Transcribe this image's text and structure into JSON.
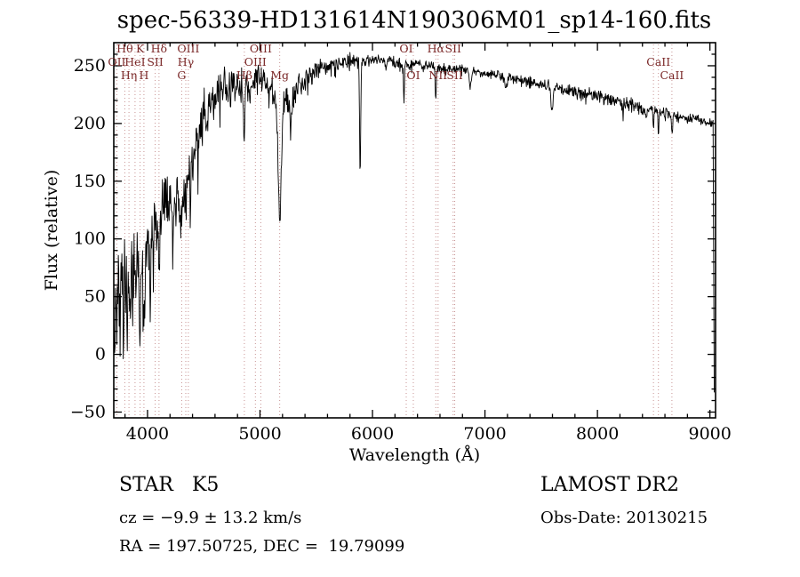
{
  "title": "spec-56339-HD131614N190306M01_sp14-160.fits",
  "axes": {
    "xlabel": "Wavelength (Å)",
    "ylabel": "Flux (relative)"
  },
  "footer": {
    "class_label": "STAR   K5",
    "survey": "LAMOST DR2",
    "cz": "cz = −9.9 ± 13.2 km/s",
    "obs_date": "Obs-Date: 20130215",
    "radec": "RA = 197.50725, DEC =  19.79099"
  },
  "chart_data": {
    "type": "line",
    "title": "spec-56339-HD131614N190306M01_sp14-160.fits",
    "xlabel": "Wavelength (Å)",
    "ylabel": "Flux (relative)",
    "xlim": [
      3700,
      9050
    ],
    "ylim": [
      -55,
      270
    ],
    "xticks": [
      4000,
      5000,
      6000,
      7000,
      8000,
      9000
    ],
    "yticks": [
      -50,
      0,
      50,
      100,
      150,
      200,
      250
    ],
    "x_minor": 200,
    "y_minor": 10,
    "grid": false,
    "color": "#000000",
    "marker_color": "#c89494",
    "label_color": "#7a2727",
    "sample_step": 4,
    "sample_end": 9030,
    "edge_drop": [
      9038,
      -33
    ],
    "spectral_lines": [
      {
        "label": "OII",
        "wl": 3727,
        "row": 1
      },
      {
        "label": "Hθ",
        "wl": 3798,
        "row": 0
      },
      {
        "label": "Hη",
        "wl": 3835,
        "row": 2
      },
      {
        "label": "HeI",
        "wl": 3889,
        "row": 1
      },
      {
        "label": "K",
        "wl": 3934,
        "row": 0
      },
      {
        "label": "H",
        "wl": 3968,
        "row": 2
      },
      {
        "label": "SII",
        "wl": 4068,
        "row": 1
      },
      {
        "label": "Hδ",
        "wl": 4102,
        "row": 0
      },
      {
        "label": "G",
        "wl": 4304,
        "row": 2
      },
      {
        "label": "Hγ",
        "wl": 4340,
        "row": 1
      },
      {
        "label": "OIII",
        "wl": 4363,
        "row": 0
      },
      {
        "label": "Hβ",
        "wl": 4861,
        "row": 2
      },
      {
        "label": "OIII",
        "wl": 4959,
        "row": 1
      },
      {
        "label": "OIII",
        "wl": 5007,
        "row": 0
      },
      {
        "label": "Mg",
        "wl": 5175,
        "row": 2
      },
      {
        "label": "OI",
        "wl": 6300,
        "row": 0
      },
      {
        "label": "OI",
        "wl": 6363,
        "row": 2
      },
      {
        "label": "Hα",
        "wl": 6563,
        "row": 0
      },
      {
        "label": "NII",
        "wl": 6583,
        "row": 2
      },
      {
        "label": "SII",
        "wl": 6717,
        "row": 0
      },
      {
        "label": "SII",
        "wl": 6731,
        "row": 2
      },
      {
        "label": "",
        "wl": 8498,
        "row": 1
      },
      {
        "label": "CaII",
        "wl": 8542,
        "row": 1
      },
      {
        "label": "CaII",
        "wl": 8662,
        "row": 2
      }
    ],
    "continuum": [
      [
        3700,
        5
      ],
      [
        3730,
        30
      ],
      [
        3760,
        48
      ],
      [
        3800,
        55
      ],
      [
        3850,
        62
      ],
      [
        3900,
        72
      ],
      [
        3950,
        78
      ],
      [
        4000,
        88
      ],
      [
        4060,
        104
      ],
      [
        4120,
        120
      ],
      [
        4170,
        130
      ],
      [
        4220,
        133
      ],
      [
        4270,
        134
      ],
      [
        4320,
        140
      ],
      [
        4370,
        157
      ],
      [
        4420,
        180
      ],
      [
        4470,
        198
      ],
      [
        4520,
        210
      ],
      [
        4570,
        220
      ],
      [
        4620,
        230
      ],
      [
        4670,
        238
      ],
      [
        4720,
        232
      ],
      [
        4770,
        230
      ],
      [
        4820,
        234
      ],
      [
        4870,
        231
      ],
      [
        4920,
        228
      ],
      [
        4970,
        238
      ],
      [
        5020,
        240
      ],
      [
        5070,
        233
      ],
      [
        5120,
        227
      ],
      [
        5170,
        224
      ],
      [
        5220,
        220
      ],
      [
        5270,
        215
      ],
      [
        5320,
        230
      ],
      [
        5370,
        236
      ],
      [
        5420,
        241
      ],
      [
        5500,
        246
      ],
      [
        5600,
        250
      ],
      [
        5700,
        252
      ],
      [
        5800,
        255
      ],
      [
        5900,
        255
      ],
      [
        6000,
        254
      ],
      [
        6100,
        255
      ],
      [
        6200,
        253
      ],
      [
        6300,
        251
      ],
      [
        6400,
        252
      ],
      [
        6500,
        250
      ],
      [
        6600,
        248
      ],
      [
        6700,
        247
      ],
      [
        6800,
        247
      ],
      [
        6900,
        245
      ],
      [
        7000,
        244
      ],
      [
        7100,
        243
      ],
      [
        7200,
        240
      ],
      [
        7300,
        238
      ],
      [
        7400,
        236
      ],
      [
        7500,
        234
      ],
      [
        7600,
        232
      ],
      [
        7700,
        230
      ],
      [
        7800,
        228
      ],
      [
        7900,
        226
      ],
      [
        8000,
        224
      ],
      [
        8100,
        221
      ],
      [
        8200,
        219
      ],
      [
        8300,
        216
      ],
      [
        8400,
        213
      ],
      [
        8500,
        211
      ],
      [
        8600,
        209
      ],
      [
        8700,
        207
      ],
      [
        8800,
        205
      ],
      [
        8900,
        203
      ],
      [
        9000,
        201
      ],
      [
        9030,
        199
      ]
    ],
    "absorption_features": [
      [
        3934,
        55,
        6
      ],
      [
        3968,
        50,
        6
      ],
      [
        4026,
        18,
        5
      ],
      [
        4102,
        32,
        6
      ],
      [
        4227,
        28,
        5
      ],
      [
        4300,
        32,
        9
      ],
      [
        4340,
        26,
        6
      ],
      [
        4383,
        24,
        5
      ],
      [
        4455,
        18,
        5
      ],
      [
        4531,
        15,
        5
      ],
      [
        4668,
        16,
        5
      ],
      [
        4861,
        55,
        5
      ],
      [
        5175,
        105,
        14
      ],
      [
        5270,
        20,
        7
      ],
      [
        5890,
        102,
        5
      ],
      [
        6122,
        10,
        5
      ],
      [
        6280,
        32,
        4
      ],
      [
        6563,
        26,
        5
      ],
      [
        6867,
        16,
        7
      ],
      [
        7180,
        10,
        8
      ],
      [
        7594,
        22,
        9
      ],
      [
        8227,
        12,
        5
      ],
      [
        8434,
        10,
        5
      ],
      [
        8498,
        16,
        4
      ],
      [
        8542,
        21,
        4
      ],
      [
        8662,
        18,
        4
      ]
    ],
    "noise": {
      "seed": 20130215,
      "spike_prob": 0.05,
      "spike_scale": 1.1,
      "anchors": [
        [
          3700,
          48
        ],
        [
          3780,
          42
        ],
        [
          3860,
          38
        ],
        [
          3950,
          32
        ],
        [
          4050,
          26
        ],
        [
          4150,
          20
        ],
        [
          4250,
          18
        ],
        [
          4350,
          22
        ],
        [
          4450,
          20
        ],
        [
          4550,
          17
        ],
        [
          4650,
          14
        ],
        [
          4750,
          12
        ],
        [
          4850,
          11
        ],
        [
          4950,
          10
        ],
        [
          5050,
          9
        ],
        [
          5150,
          9
        ],
        [
          5250,
          10
        ],
        [
          5350,
          8
        ],
        [
          5450,
          7
        ],
        [
          5550,
          6
        ],
        [
          5700,
          5
        ],
        [
          5850,
          4.5
        ],
        [
          6000,
          4
        ],
        [
          6250,
          4
        ],
        [
          6500,
          3.5
        ],
        [
          6750,
          3
        ],
        [
          7000,
          3
        ],
        [
          7250,
          3.5
        ],
        [
          7500,
          4
        ],
        [
          7750,
          4
        ],
        [
          8000,
          4
        ],
        [
          8250,
          4.5
        ],
        [
          8500,
          4
        ],
        [
          8750,
          3.5
        ],
        [
          9030,
          3
        ]
      ]
    }
  }
}
